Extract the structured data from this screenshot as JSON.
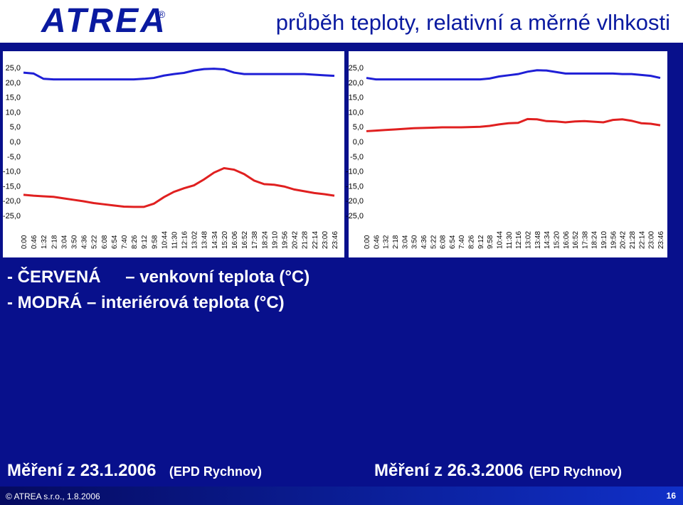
{
  "header": {
    "logo": "ATREA",
    "logo_mark": "®",
    "title": "průběh teploty, relativní a měrné vlhkosti"
  },
  "chart_data": [
    {
      "type": "line",
      "categories": [
        "0:00",
        "0:46",
        "1:32",
        "2:18",
        "3:04",
        "3:50",
        "4:36",
        "5:22",
        "6:08",
        "6:54",
        "7:40",
        "8:26",
        "9:12",
        "9:58",
        "10:44",
        "11:30",
        "12:16",
        "13:02",
        "13:48",
        "14:34",
        "15:20",
        "16:06",
        "16:52",
        "17:38",
        "18:24",
        "19:10",
        "19:56",
        "20:42",
        "21:28",
        "22:14",
        "23:00",
        "23:46"
      ],
      "series": [
        {
          "color": "#1f1fd6",
          "values": [
            23.3,
            23,
            21.2,
            21,
            21,
            21,
            21,
            21,
            21,
            21,
            21,
            21,
            21.2,
            21.5,
            22.3,
            22.8,
            23.2,
            24,
            24.5,
            24.6,
            24.4,
            23.3,
            22.8,
            22.8,
            22.8,
            22.8,
            22.8,
            22.8,
            22.8,
            22.6,
            22.4,
            22.2
          ]
        },
        {
          "color": "#e02020",
          "values": [
            -18,
            -18.3,
            -18.5,
            -18.7,
            -19.2,
            -19.7,
            -20.2,
            -20.8,
            -21.2,
            -21.6,
            -22,
            -22.1,
            -22.1,
            -21,
            -18.8,
            -17,
            -15.8,
            -14.8,
            -12.8,
            -10.5,
            -9,
            -9.5,
            -11,
            -13.2,
            -14.4,
            -14.6,
            -15.2,
            -16.2,
            -16.8,
            -17.4,
            -17.8,
            -18.3
          ]
        }
      ],
      "ylim": [
        -25,
        25
      ],
      "yticks": [
        {
          "value": 25,
          "label": "25,0"
        },
        {
          "value": 20,
          "label": "20,0"
        },
        {
          "value": 15,
          "label": "15,0"
        },
        {
          "value": 10,
          "label": "10,0"
        },
        {
          "value": 5,
          "label": "5,0"
        },
        {
          "value": 0,
          "label": "0,0"
        },
        {
          "value": -5,
          "label": "-5,0"
        },
        {
          "value": -10,
          "label": "-10,0"
        },
        {
          "value": -15,
          "label": "-15,0"
        },
        {
          "value": -20,
          "label": "-20,0"
        },
        {
          "value": -25,
          "label": "-25,0"
        }
      ]
    },
    {
      "type": "line",
      "categories": [
        "0:00",
        "0:46",
        "1:32",
        "2:18",
        "3:04",
        "3:50",
        "4:36",
        "5:22",
        "6:08",
        "6:54",
        "7:40",
        "8:26",
        "9:12",
        "9:58",
        "10:44",
        "11:30",
        "12:16",
        "13:02",
        "13:48",
        "14:34",
        "15:20",
        "16:06",
        "16:52",
        "17:38",
        "18:24",
        "19:10",
        "19:56",
        "20:42",
        "21:28",
        "22:14",
        "23:00",
        "23:46"
      ],
      "series": [
        {
          "color": "#1f1fd6",
          "values": [
            21.5,
            21,
            21,
            21,
            21,
            21,
            21,
            21,
            21,
            21,
            21,
            21,
            21,
            21.3,
            22,
            22.4,
            22.8,
            23.6,
            24.1,
            24,
            23.5,
            23,
            23,
            23,
            23,
            23,
            23,
            22.8,
            22.8,
            22.5,
            22.2,
            21.5
          ]
        },
        {
          "color": "#e02020",
          "values": [
            3.5,
            3.7,
            3.9,
            4.1,
            4.3,
            4.5,
            4.6,
            4.7,
            4.8,
            4.8,
            4.8,
            4.9,
            5,
            5.3,
            5.8,
            6.2,
            6.3,
            7.6,
            7.5,
            6.9,
            6.8,
            6.5,
            6.8,
            6.9,
            6.7,
            6.5,
            7.3,
            7.5,
            7,
            6.2,
            6,
            5.5
          ]
        }
      ],
      "ylim": [
        -25,
        25
      ],
      "yticks": [
        {
          "value": 25,
          "label": "25,0"
        },
        {
          "value": 20,
          "label": "20,0"
        },
        {
          "value": 15,
          "label": "15,0"
        },
        {
          "value": 10,
          "label": "10,0"
        },
        {
          "value": 5,
          "label": "5,0"
        },
        {
          "value": 0,
          "label": "0,0"
        },
        {
          "value": -5,
          "label": "-5,0"
        },
        {
          "value": -10,
          "label": "-10,0"
        },
        {
          "value": -15,
          "label": "-15,0"
        },
        {
          "value": -20,
          "label": "-20,0"
        },
        {
          "value": -25,
          "label": "-25,0"
        }
      ]
    }
  ],
  "legend": {
    "red_dash": "-",
    "red_name": "ČERVENÁ",
    "red_text": "– venkovní teplota (°C)",
    "blue_dash": "-",
    "blue_text": "MODRÁ – interiérová teplota (°C)"
  },
  "captions": [
    {
      "title": "Měření z 23.1.2006",
      "place": "(EPD Rychnov)"
    },
    {
      "title": "Měření z 26.3.2006",
      "place": "(EPD Rychnov)"
    }
  ],
  "footer": {
    "copyright": "© ATREA s.r.o., 1.8.2006",
    "page": "16"
  }
}
